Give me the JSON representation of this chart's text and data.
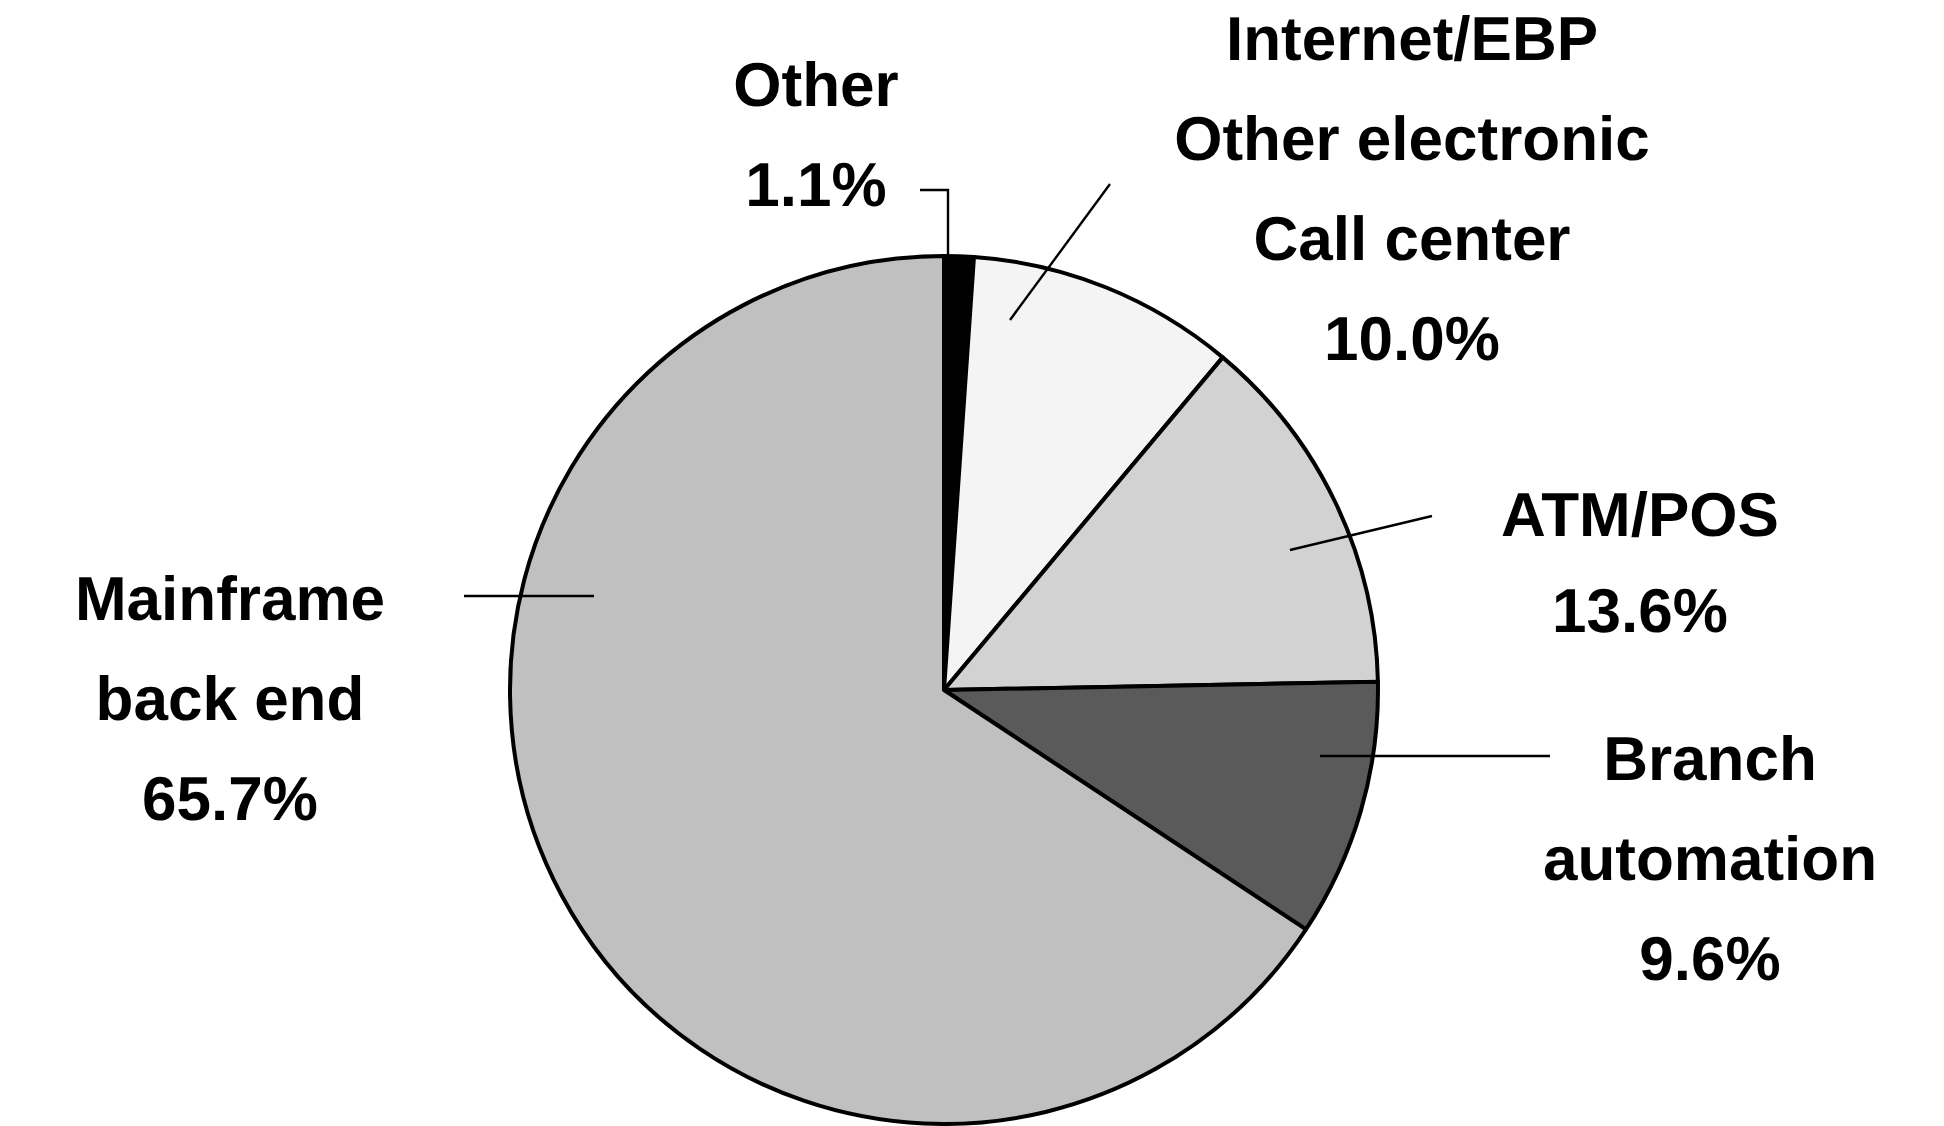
{
  "chart_data": {
    "type": "pie",
    "categories": [
      "Other",
      "Internet/EBP\nOther electronic\nCall center",
      "ATM/POS",
      "Branch\nautomation",
      "Mainframe\nback end"
    ],
    "values": [
      1.1,
      10.0,
      13.6,
      9.6,
      65.7
    ],
    "value_labels": [
      "1.1%",
      "10.0%",
      "13.6%",
      "9.6%",
      "65.7%"
    ],
    "colors": [
      "#000000",
      "#f4f4f4",
      "#d2d2d2",
      "#5a5a5a",
      "#c0c0c0"
    ]
  }
}
